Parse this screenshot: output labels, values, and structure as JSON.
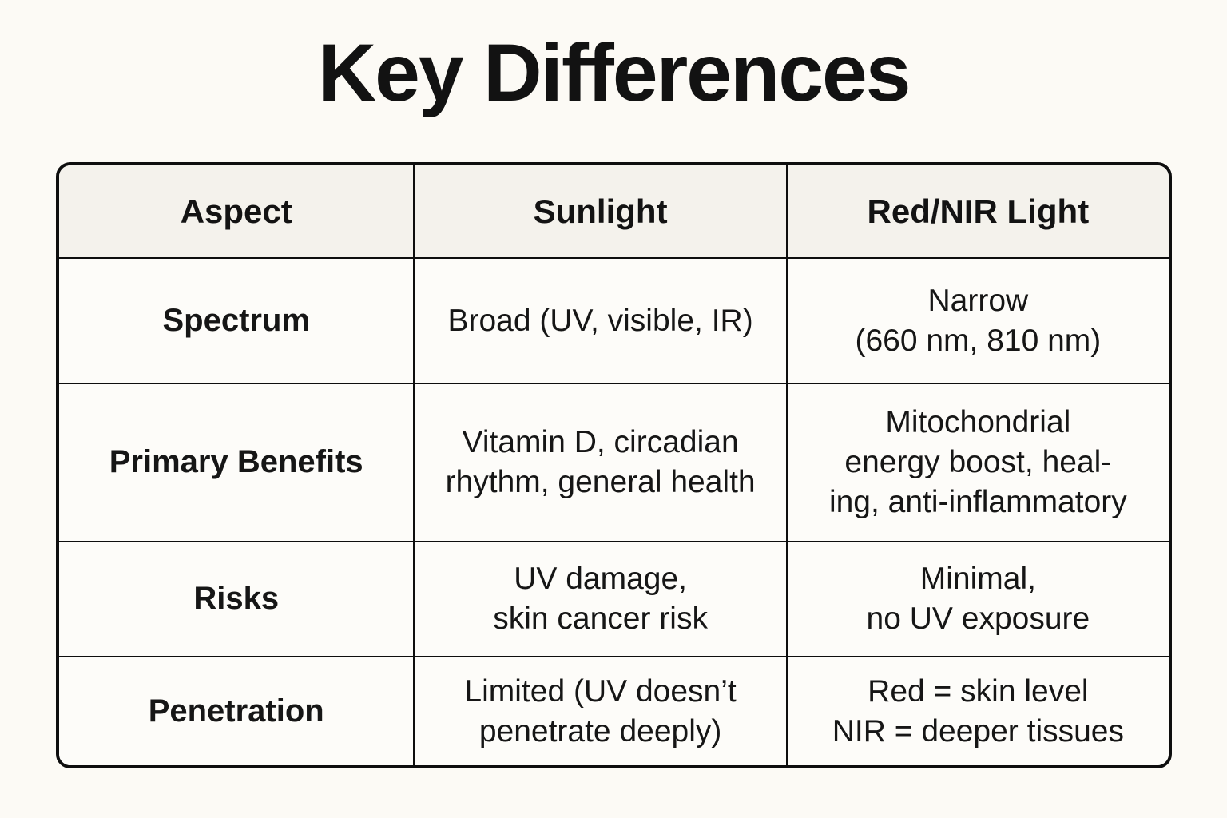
{
  "page": {
    "title": "Key Differences",
    "background_color": "#FCFAF5",
    "header_bg_color": "#F4F2EC",
    "cell_bg_color": "#FDFCF9",
    "border_color": "#0e0e0e",
    "text_color": "#161616"
  },
  "table": {
    "headers": {
      "aspect": "Aspect",
      "sunlight": "Sunlight",
      "red_nir": "Red/NIR Light"
    },
    "rows": [
      {
        "aspect": "Spectrum",
        "sunlight": "Broad (UV, visible, IR)",
        "red_nir": "Narrow\n(660 nm, 810 nm)"
      },
      {
        "aspect": "Primary Benefits",
        "sunlight": "Vitamin D, circadian\nrhythm, general health",
        "red_nir": "Mitochondrial\nenergy boost, heal-\ning, anti-inflammatory"
      },
      {
        "aspect": "Risks",
        "sunlight": "UV damage,\nskin cancer risk",
        "red_nir": "Minimal,\nno UV exposure"
      },
      {
        "aspect": "Penetration",
        "sunlight": "Limited (UV doesn’t\npenetrate deeply)",
        "red_nir": "Red = skin level\nNIR = deeper tissues"
      }
    ]
  },
  "chart_data": {
    "type": "table",
    "title": "Key Differences",
    "columns": [
      "Aspect",
      "Sunlight",
      "Red/NIR Light"
    ],
    "rows": [
      [
        "Spectrum",
        "Broad (UV, visible, IR)",
        "Narrow (660 nm, 810 nm)"
      ],
      [
        "Primary Benefits",
        "Vitamin D, circadian rhythm, general health",
        "Mitochondrial energy boost, healing, anti-inflammatory"
      ],
      [
        "Risks",
        "UV damage, skin cancer risk",
        "Minimal, no UV exposure"
      ],
      [
        "Penetration",
        "Limited (UV doesn’t penetrate deeply)",
        "Red = skin level, NIR = deeper tissues"
      ]
    ],
    "legend": "none",
    "grid": "ruled table with rounded outer border"
  }
}
